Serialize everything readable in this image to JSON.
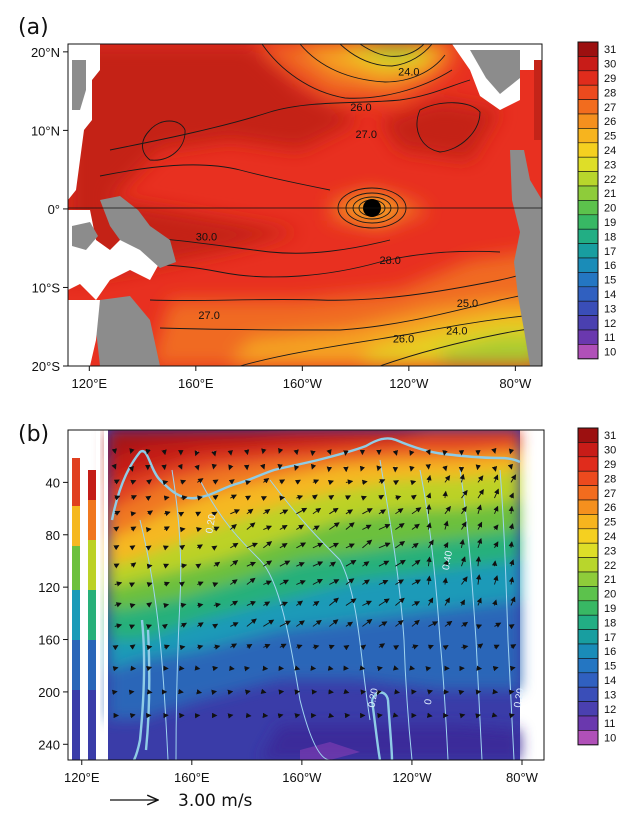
{
  "chart_data": [
    {
      "panel": "(a)",
      "type": "heatmap",
      "title": "",
      "x_ticks": [
        "120°E",
        "160°E",
        "160°W",
        "120°W",
        "80°W"
      ],
      "x_values": [
        120,
        160,
        200,
        240,
        280
      ],
      "y_ticks": [
        "20°N",
        "10°N",
        "0°",
        "10°S",
        "20°S"
      ],
      "y_values": [
        20,
        10,
        0,
        -10,
        -20
      ],
      "xlim": [
        112,
        290
      ],
      "ylim": [
        -20,
        21
      ],
      "colorbar": {
        "min": 10,
        "max": 31,
        "step": 1,
        "ticks": [
          "31",
          "30",
          "29",
          "28",
          "27",
          "26",
          "25",
          "24",
          "23",
          "22",
          "21",
          "20",
          "19",
          "18",
          "17",
          "16",
          "15",
          "14",
          "13",
          "12",
          "11",
          "10"
        ]
      },
      "contour_labels": [
        {
          "text": "24.0",
          "x": 240,
          "y": 17
        },
        {
          "text": "26.0",
          "x": 222,
          "y": 12.5
        },
        {
          "text": "27.0",
          "x": 224,
          "y": 9
        },
        {
          "text": "30.0",
          "x": 164,
          "y": -4
        },
        {
          "text": "28.0",
          "x": 233,
          "y": -7
        },
        {
          "text": "27.0",
          "x": 165,
          "y": -14
        },
        {
          "text": "25.0",
          "x": 262,
          "y": -12.5
        },
        {
          "text": "26.0",
          "x": 238,
          "y": -17
        },
        {
          "text": "24.0",
          "x": 258,
          "y": -16
        }
      ]
    },
    {
      "panel": "(b)",
      "type": "heatmap",
      "title": "",
      "x_ticks": [
        "120°E",
        "160°E",
        "160°W",
        "120°W",
        "80°W"
      ],
      "x_values": [
        120,
        160,
        200,
        240,
        280
      ],
      "y_ticks": [
        "40",
        "80",
        "120",
        "160",
        "200",
        "240"
      ],
      "y_values": [
        40,
        80,
        120,
        160,
        200,
        240
      ],
      "xlim": [
        115,
        288
      ],
      "ylim": [
        0,
        252
      ],
      "colorbar": {
        "min": 10,
        "max": 31,
        "step": 1,
        "ticks": [
          "31",
          "30",
          "29",
          "28",
          "27",
          "26",
          "25",
          "24",
          "23",
          "22",
          "21",
          "20",
          "19",
          "18",
          "17",
          "16",
          "15",
          "14",
          "13",
          "12",
          "11",
          "10"
        ]
      },
      "contour_labels": [
        {
          "text": "0.20",
          "x": 168,
          "y": 72
        },
        {
          "text": "0.20",
          "x": 227,
          "y": 205
        },
        {
          "text": "0",
          "x": 247,
          "y": 208
        },
        {
          "text": "0.40",
          "x": 254,
          "y": 100
        },
        {
          "text": "0.20",
          "x": 280,
          "y": 205
        }
      ],
      "reference_vector": {
        "label": "3.00 m/s",
        "value": 3.0,
        "unit": "m/s"
      }
    }
  ]
}
